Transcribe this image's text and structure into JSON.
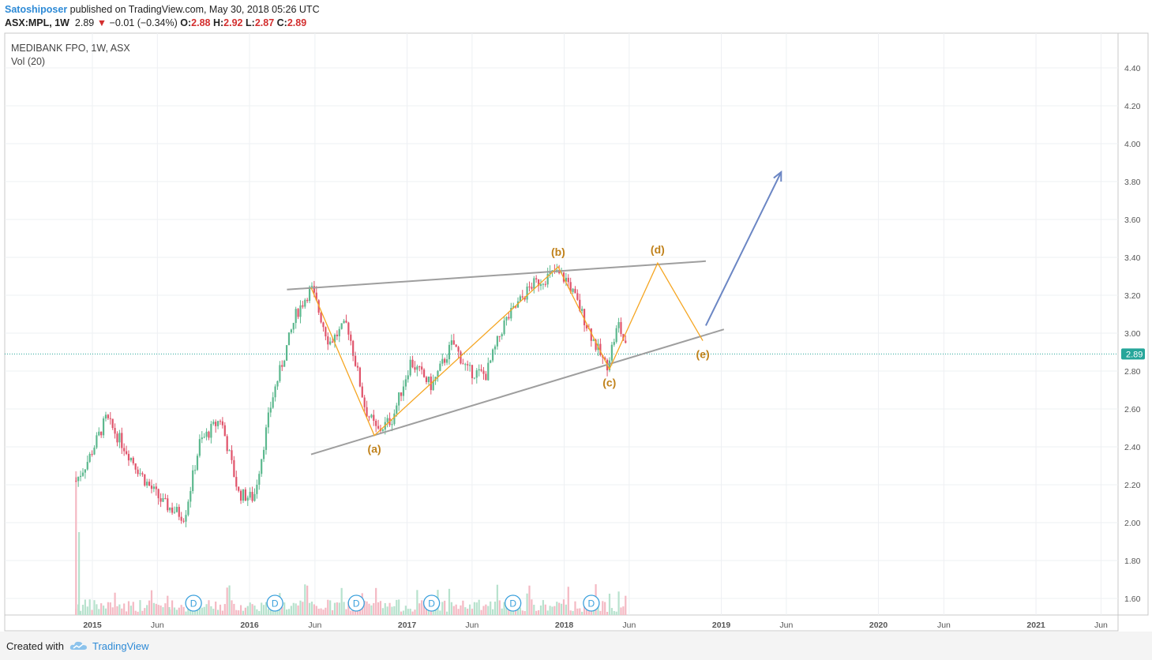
{
  "header": {
    "author": "Satoshiposer",
    "published": " published on TradingView.com, May 30, 2018 05:26 UTC",
    "symbol": "ASX:MPL, 1W",
    "last": "2.89",
    "change": "−0.01 (−0.34%)",
    "o_label": "O:",
    "o": "2.88",
    "h_label": "H:",
    "h": "2.92",
    "l_label": "L:",
    "l": "2.87",
    "c_label": "C:",
    "c": "2.89"
  },
  "legend": {
    "title": "MEDIBANK FPO, 1W, ASX",
    "volume": "Vol (20)"
  },
  "footer": {
    "created": "Created with",
    "brand": "TradingView"
  },
  "colors": {
    "up": "#5cb88e",
    "down": "#e0536a",
    "line": "#9e9e9e",
    "wave": "#f5a623",
    "label": "#c0811a",
    "arrow": "#6b86c4",
    "author": "#2d8ad6"
  },
  "chart_data": {
    "type": "candlestick",
    "instrument": "MEDIBANK FPO, 1W, ASX",
    "ylim": [
      1.5,
      4.5
    ],
    "y_ticks": [
      "4.40",
      "4.20",
      "4.00",
      "3.80",
      "3.60",
      "3.40",
      "3.20",
      "3.00",
      "2.80",
      "2.60",
      "2.40",
      "2.20",
      "2.00",
      "1.80",
      "1.60"
    ],
    "x_ticks": [
      "2015",
      "Jun",
      "2016",
      "Jun",
      "2017",
      "Jun",
      "2018",
      "Jun",
      "2019",
      "Jun",
      "2020",
      "Jun",
      "2021",
      "Jun"
    ],
    "last_price": "2.89",
    "price_path": [
      [
        "2014-11-24",
        2.22
      ],
      [
        "2014-12-22",
        2.33
      ],
      [
        "2015-02-02",
        2.55
      ],
      [
        "2015-03-16",
        2.4
      ],
      [
        "2015-05-04",
        2.22
      ],
      [
        "2015-06-15",
        2.1
      ],
      [
        "2015-08-03",
        2.03
      ],
      [
        "2015-09-07",
        2.42
      ],
      [
        "2015-10-26",
        2.55
      ],
      [
        "2015-12-07",
        2.15
      ],
      [
        "2016-01-11",
        2.13
      ],
      [
        "2016-02-22",
        2.65
      ],
      [
        "2016-04-18",
        3.1
      ],
      [
        "2016-05-23",
        3.24
      ],
      [
        "2016-07-04",
        2.95
      ],
      [
        "2016-08-15",
        3.05
      ],
      [
        "2016-09-26",
        2.6
      ],
      [
        "2016-10-24",
        2.48
      ],
      [
        "2016-11-28",
        2.55
      ],
      [
        "2017-01-09",
        2.85
      ],
      [
        "2017-02-27",
        2.72
      ],
      [
        "2017-04-17",
        2.95
      ],
      [
        "2017-05-22",
        2.8
      ],
      [
        "2017-07-03",
        2.78
      ],
      [
        "2017-08-14",
        3.05
      ],
      [
        "2017-10-16",
        3.25
      ],
      [
        "2017-12-11",
        3.32
      ],
      [
        "2018-01-08",
        3.28
      ],
      [
        "2018-02-12",
        3.1
      ],
      [
        "2018-03-12",
        2.95
      ],
      [
        "2018-04-09",
        2.82
      ],
      [
        "2018-05-07",
        3.05
      ],
      [
        "2018-05-28",
        2.89
      ]
    ],
    "volume_markers": [
      "D",
      "D",
      "D",
      "D",
      "D",
      "D"
    ],
    "trendlines": [
      {
        "name": "upper",
        "from": [
          "2016-03-28",
          3.23
        ],
        "to": [
          "2018-11-26",
          3.38
        ]
      },
      {
        "name": "lower",
        "from": [
          "2016-05-23",
          2.36
        ],
        "to": [
          "2019-01-07",
          3.02
        ]
      }
    ],
    "waves": [
      {
        "label": "(a)",
        "date": "2016-10-17",
        "value": 2.46
      },
      {
        "label": "(b)",
        "date": "2017-12-18",
        "value": 3.35
      },
      {
        "label": "(c)",
        "date": "2018-04-16",
        "value": 2.81
      },
      {
        "label": "(d)",
        "date": "2018-08-06",
        "value": 3.37
      },
      {
        "label": "(e)",
        "date": "2018-11-19",
        "value": 2.96
      }
    ],
    "projection_arrow": {
      "from": [
        "2018-11-26",
        3.04
      ],
      "to": [
        "2019-05-20",
        3.85
      ]
    }
  }
}
